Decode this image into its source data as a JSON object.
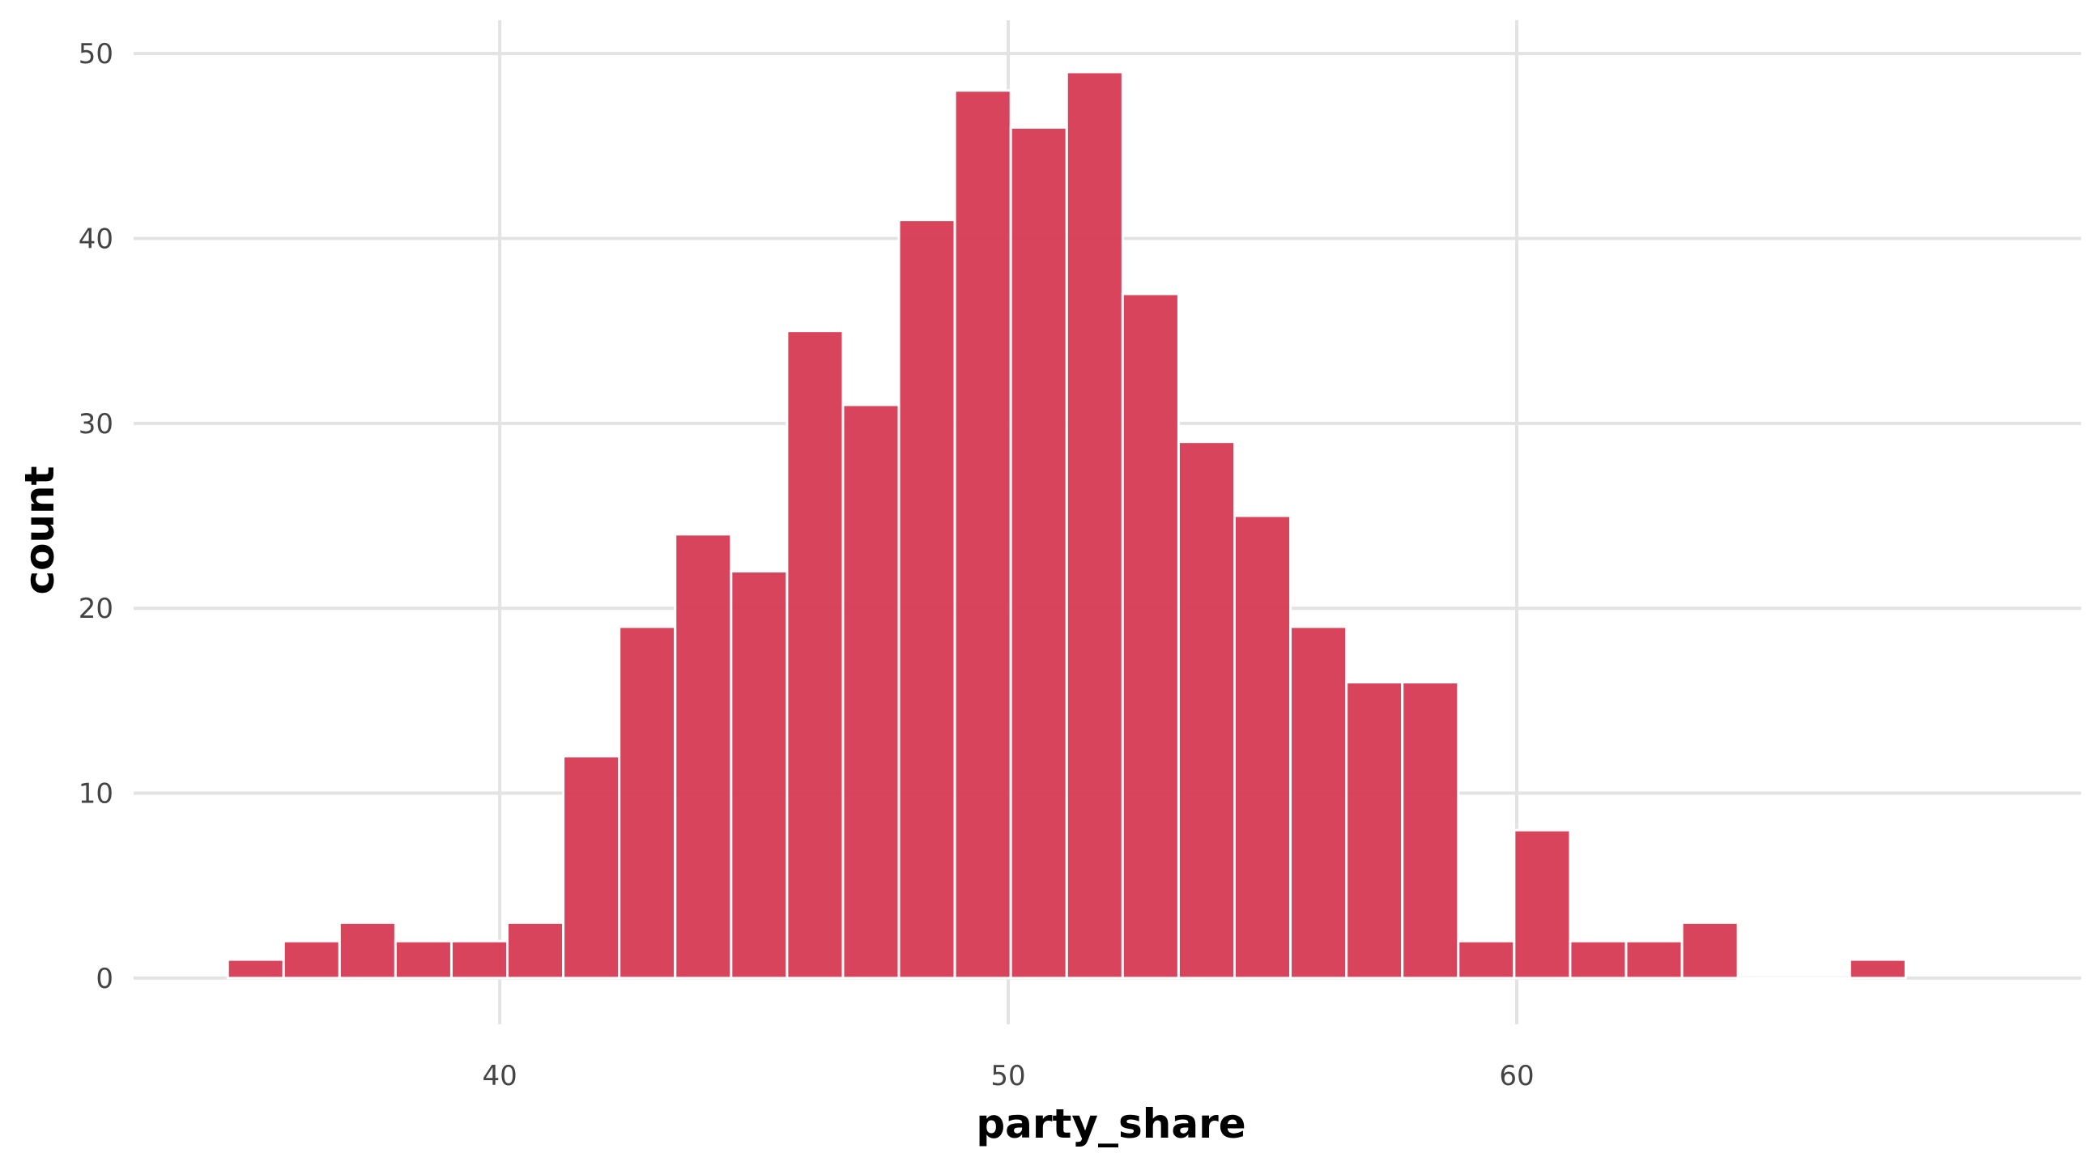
{
  "chart_data": {
    "type": "bar",
    "title": "",
    "xlabel": "party_share",
    "ylabel": "count",
    "bar_color": "#d63a53",
    "bin_width": 1.1,
    "bins": [
      {
        "x0": 34.65,
        "count": 1
      },
      {
        "x0": 35.75,
        "count": 2
      },
      {
        "x0": 36.85,
        "count": 3
      },
      {
        "x0": 37.95,
        "count": 2
      },
      {
        "x0": 39.05,
        "count": 2
      },
      {
        "x0": 40.15,
        "count": 3
      },
      {
        "x0": 41.25,
        "count": 12
      },
      {
        "x0": 42.35,
        "count": 19
      },
      {
        "x0": 43.45,
        "count": 24
      },
      {
        "x0": 44.55,
        "count": 22
      },
      {
        "x0": 45.65,
        "count": 35
      },
      {
        "x0": 46.75,
        "count": 31
      },
      {
        "x0": 47.85,
        "count": 41
      },
      {
        "x0": 48.95,
        "count": 48
      },
      {
        "x0": 50.05,
        "count": 46
      },
      {
        "x0": 51.15,
        "count": 49
      },
      {
        "x0": 52.25,
        "count": 37
      },
      {
        "x0": 53.35,
        "count": 29
      },
      {
        "x0": 54.45,
        "count": 25
      },
      {
        "x0": 55.55,
        "count": 19
      },
      {
        "x0": 56.65,
        "count": 16
      },
      {
        "x0": 57.75,
        "count": 16
      },
      {
        "x0": 58.85,
        "count": 2
      },
      {
        "x0": 59.95,
        "count": 8
      },
      {
        "x0": 61.05,
        "count": 2
      },
      {
        "x0": 62.15,
        "count": 2
      },
      {
        "x0": 63.25,
        "count": 3
      },
      {
        "x0": 64.35,
        "count": 0
      },
      {
        "x0": 65.45,
        "count": 0
      },
      {
        "x0": 66.55,
        "count": 1
      }
    ],
    "xlim": [
      32.8,
      71.1
    ],
    "ylim": [
      -2.5,
      51.8
    ],
    "x_ticks": [
      40,
      50,
      60
    ],
    "y_ticks": [
      0,
      10,
      20,
      30,
      40,
      50
    ],
    "x_tick_labels": [
      "40",
      "50",
      "60"
    ],
    "y_tick_labels": [
      "0",
      "10",
      "20",
      "30",
      "40",
      "50"
    ],
    "grid": true,
    "legend": "none"
  }
}
